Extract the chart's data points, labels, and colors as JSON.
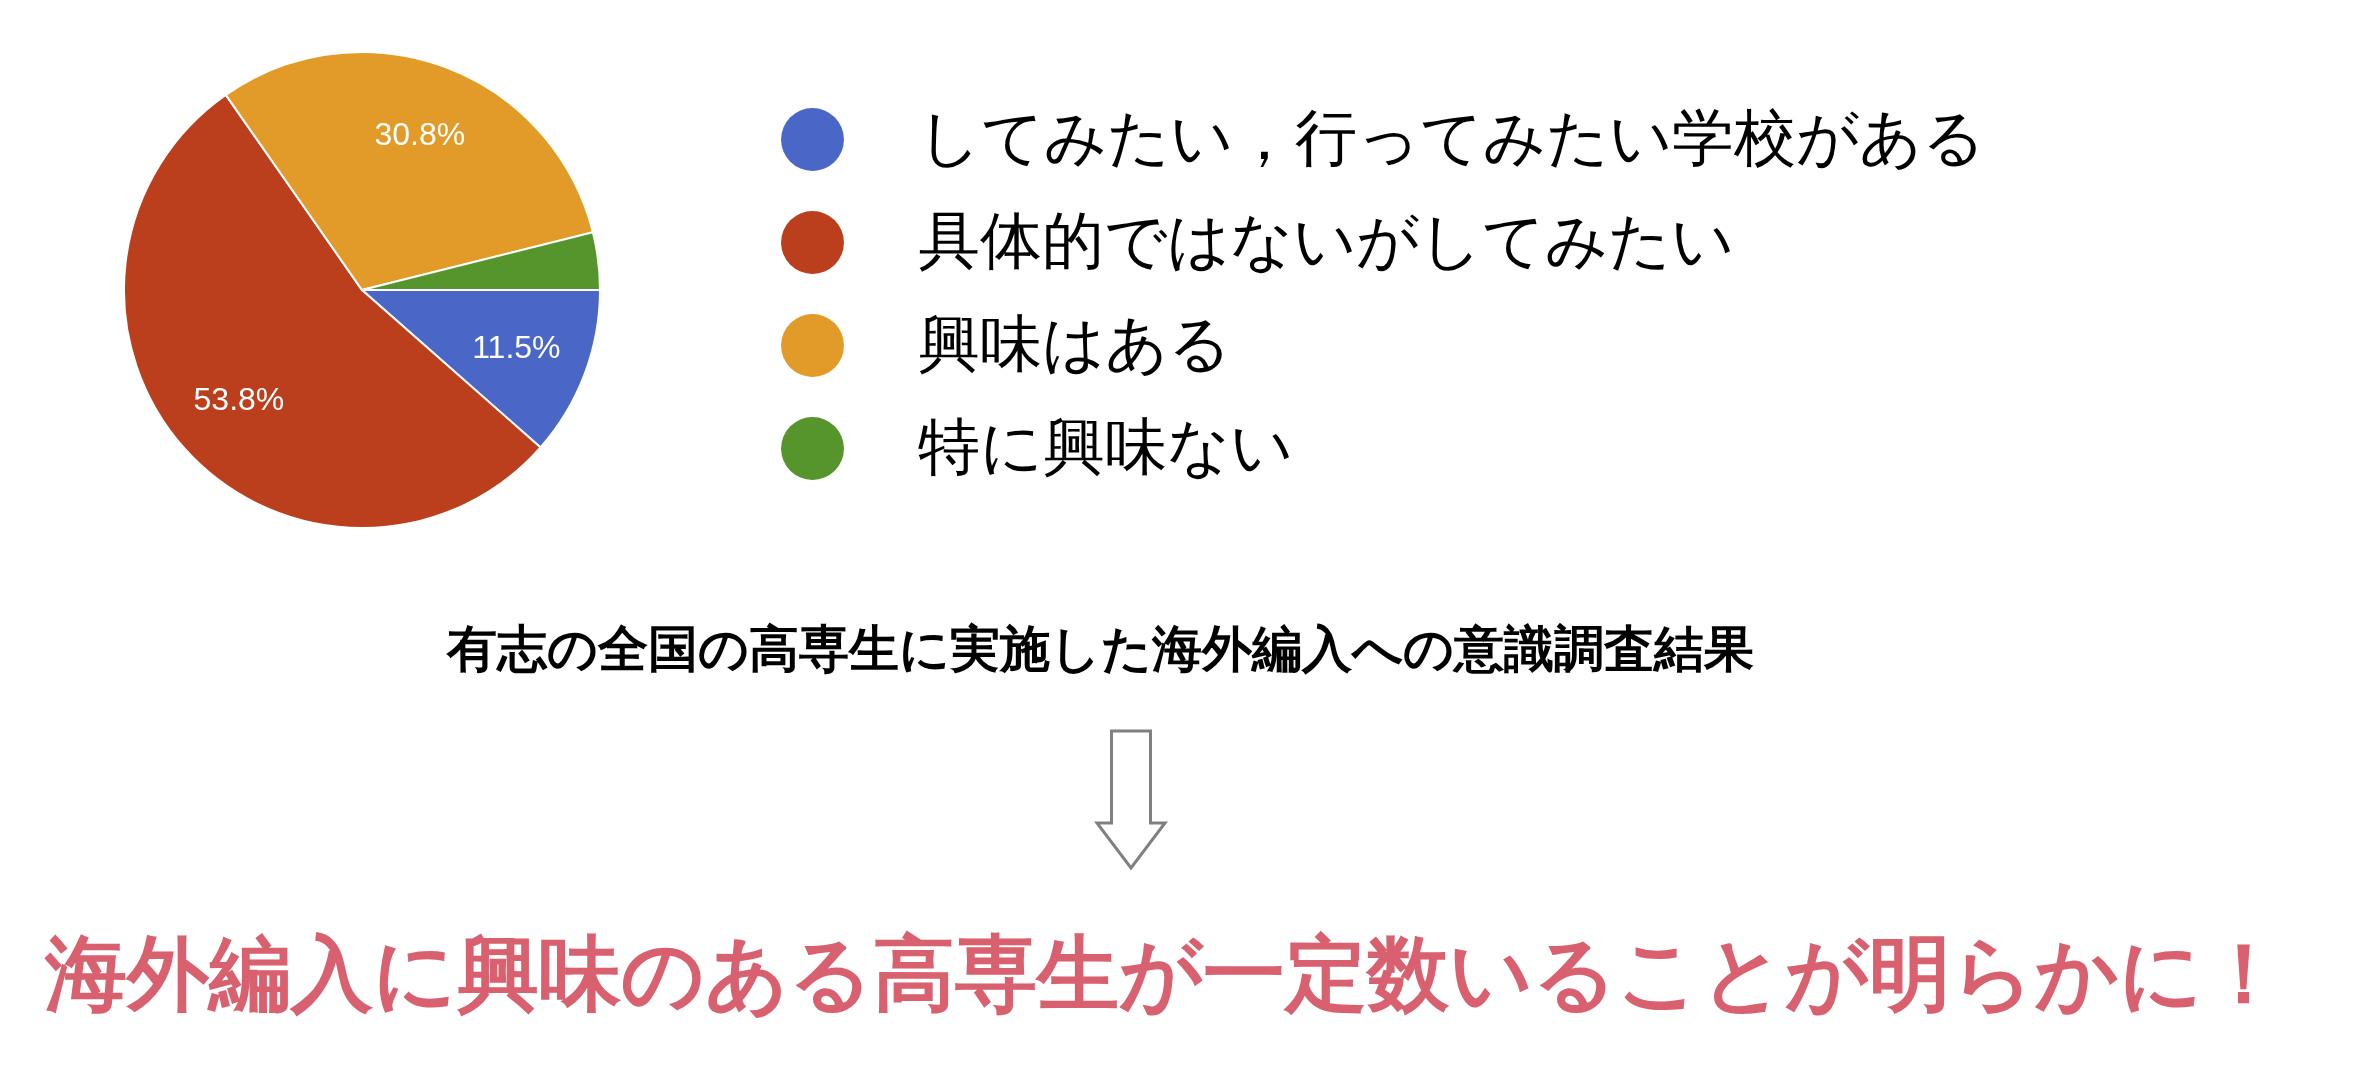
{
  "chart_data": {
    "type": "pie",
    "categories": [
      "してみたい，行ってみたい学校がある",
      "具体的ではないがしてみたい",
      "興味はある",
      "特に興味ない"
    ],
    "values": [
      11.5,
      53.8,
      30.8,
      3.9
    ],
    "colors": [
      "#4a67c8",
      "#bc3f1d",
      "#e29b28",
      "#56952b"
    ],
    "value_labels": [
      "11.5%",
      "53.8%",
      "30.8%",
      null
    ],
    "legend": "right",
    "annotations": [
      "有志の全国の高専生に実施した海外編入への意識調査結果",
      "海外編入に興味のある高専生が一定数いることが明らかに！"
    ]
  }
}
